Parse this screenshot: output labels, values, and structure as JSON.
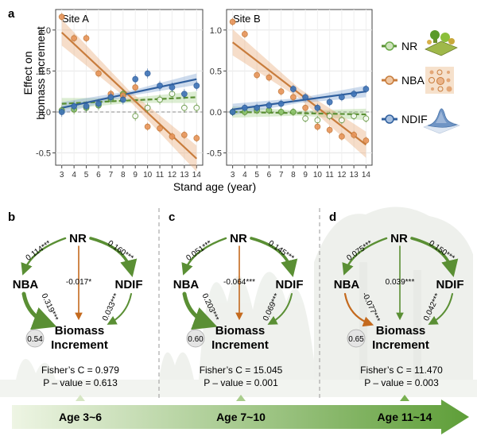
{
  "panel_a": {
    "label": "a",
    "ylabel_line1": "Effect on",
    "ylabel_line2": "biomass increment",
    "xlabel": "Stand age (year)"
  },
  "legend": {
    "items": [
      {
        "name": "NR",
        "color": "#6aaa47",
        "icon": "forest-plot-icon"
      },
      {
        "name": "NBA",
        "color": "#c87c3c",
        "icon": "bubble-grid-icon"
      },
      {
        "name": "NDIF",
        "color": "#2f5f9e",
        "icon": "surface-plot-icon"
      }
    ]
  },
  "chart_data": [
    {
      "type": "scatter",
      "title": "Site A",
      "x": [
        3,
        4,
        5,
        6,
        7,
        8,
        9,
        10,
        11,
        12,
        13,
        14
      ],
      "xlim": [
        2.5,
        14.5
      ],
      "ylim": [
        -0.65,
        1.25
      ],
      "yticks": [
        -0.5,
        0,
        0.5,
        1
      ],
      "grid": true,
      "series": [
        {
          "name": "NR",
          "values": [
            0.02,
            0.03,
            0.05,
            0.08,
            0.16,
            0.22,
            -0.05,
            0.05,
            0.15,
            0.22,
            0.05,
            0.05
          ],
          "filled": [
            true,
            true,
            true,
            true,
            true,
            true,
            false,
            false,
            false,
            false,
            false,
            false
          ],
          "fit": [
            0.1,
            0.18
          ],
          "err": 0.06
        },
        {
          "name": "NBA",
          "values": [
            1.16,
            0.9,
            0.9,
            0.47,
            0.22,
            0.2,
            0.3,
            -0.18,
            -0.2,
            -0.3,
            -0.28,
            -0.32
          ],
          "filled": [
            true,
            true,
            true,
            true,
            true,
            true,
            true,
            true,
            true,
            true,
            true,
            true
          ],
          "fit": [
            0.97,
            -0.57
          ],
          "err": 0.05
        },
        {
          "name": "NDIF",
          "values": [
            0.0,
            0.07,
            0.07,
            0.1,
            0.18,
            0.15,
            0.4,
            0.47,
            0.32,
            0.3,
            0.22,
            0.32
          ],
          "filled": [
            true,
            true,
            true,
            true,
            true,
            true,
            true,
            true,
            true,
            true,
            true,
            true
          ],
          "fit": [
            0.05,
            0.4
          ],
          "err": 0.06
        }
      ]
    },
    {
      "type": "scatter",
      "title": "Site B",
      "x": [
        3,
        4,
        5,
        6,
        7,
        8,
        9,
        10,
        11,
        12,
        13,
        14
      ],
      "xlim": [
        2.5,
        14.5
      ],
      "ylim": [
        -0.65,
        1.25
      ],
      "yticks": [
        -0.5,
        0,
        0.5,
        1
      ],
      "grid": true,
      "series": [
        {
          "name": "NR",
          "values": [
            0.0,
            0.0,
            0.02,
            0.02,
            0.0,
            0.0,
            -0.08,
            -0.1,
            -0.05,
            -0.1,
            -0.05,
            -0.08
          ],
          "filled": [
            true,
            true,
            true,
            true,
            true,
            true,
            false,
            false,
            false,
            false,
            false,
            false
          ],
          "fit": [
            0.0,
            -0.03
          ],
          "err": 0.05
        },
        {
          "name": "NBA",
          "values": [
            1.1,
            0.95,
            0.45,
            0.42,
            0.25,
            0.18,
            0.05,
            -0.18,
            -0.22,
            -0.3,
            -0.28,
            -0.35
          ],
          "filled": [
            true,
            true,
            true,
            true,
            true,
            true,
            true,
            true,
            true,
            true,
            true,
            true
          ],
          "fit": [
            0.85,
            -0.4
          ],
          "err": 0.05
        },
        {
          "name": "NDIF",
          "values": [
            0.0,
            0.05,
            0.05,
            0.08,
            0.1,
            0.28,
            0.18,
            0.05,
            0.12,
            0.18,
            0.22,
            0.28
          ],
          "filled": [
            true,
            true,
            true,
            true,
            true,
            true,
            true,
            true,
            true,
            true,
            true,
            true
          ],
          "fit": [
            0.03,
            0.25
          ],
          "err": 0.05
        }
      ]
    }
  ],
  "paths": [
    {
      "label": "b",
      "nr_nba": "0.114***",
      "nr_ndif": "0.160***",
      "nr_bio": "-0.017*",
      "nba_bio": "0.319***",
      "ndif_bio": "0.033***",
      "r2": "0.54",
      "fisher": "Fisher’s C = 0.979",
      "pvalue": "P – value = 0.613"
    },
    {
      "label": "c",
      "nr_nba": "0.051***",
      "nr_ndif": "0.145***",
      "nr_bio": "-0.064***",
      "nba_bio": "0.203***",
      "ndif_bio": "0.069***",
      "r2": "0.60",
      "fisher": "Fisher’s C = 15.045",
      "pvalue": "P – value = 0.001"
    },
    {
      "label": "d",
      "nr_nba": "0.075***",
      "nr_ndif": "0.150***",
      "nr_bio": "0.039***",
      "nba_bio": "-0.077***",
      "ndif_bio": "0.042***",
      "r2": "0.65",
      "fisher": "Fisher’s C = 11.470",
      "pvalue": "P – value = 0.003"
    }
  ],
  "node_labels": {
    "nr": "NR",
    "nba": "NBA",
    "ndif": "NDIF",
    "bio1": "Biomass",
    "bio2": "Increment"
  },
  "age_bar": {
    "labels": [
      "Age 3~6",
      "Age 7~10",
      "Age 11~14"
    ]
  },
  "colors": {
    "nr": "#5a9a3a",
    "nba": "#c87c3c",
    "ndif": "#2f5f9e",
    "nba_neg": "#c46a1e",
    "arrow_green": "#5a8f34",
    "bar_start": "#eaf2dc",
    "bar_end": "#5e9e38"
  }
}
